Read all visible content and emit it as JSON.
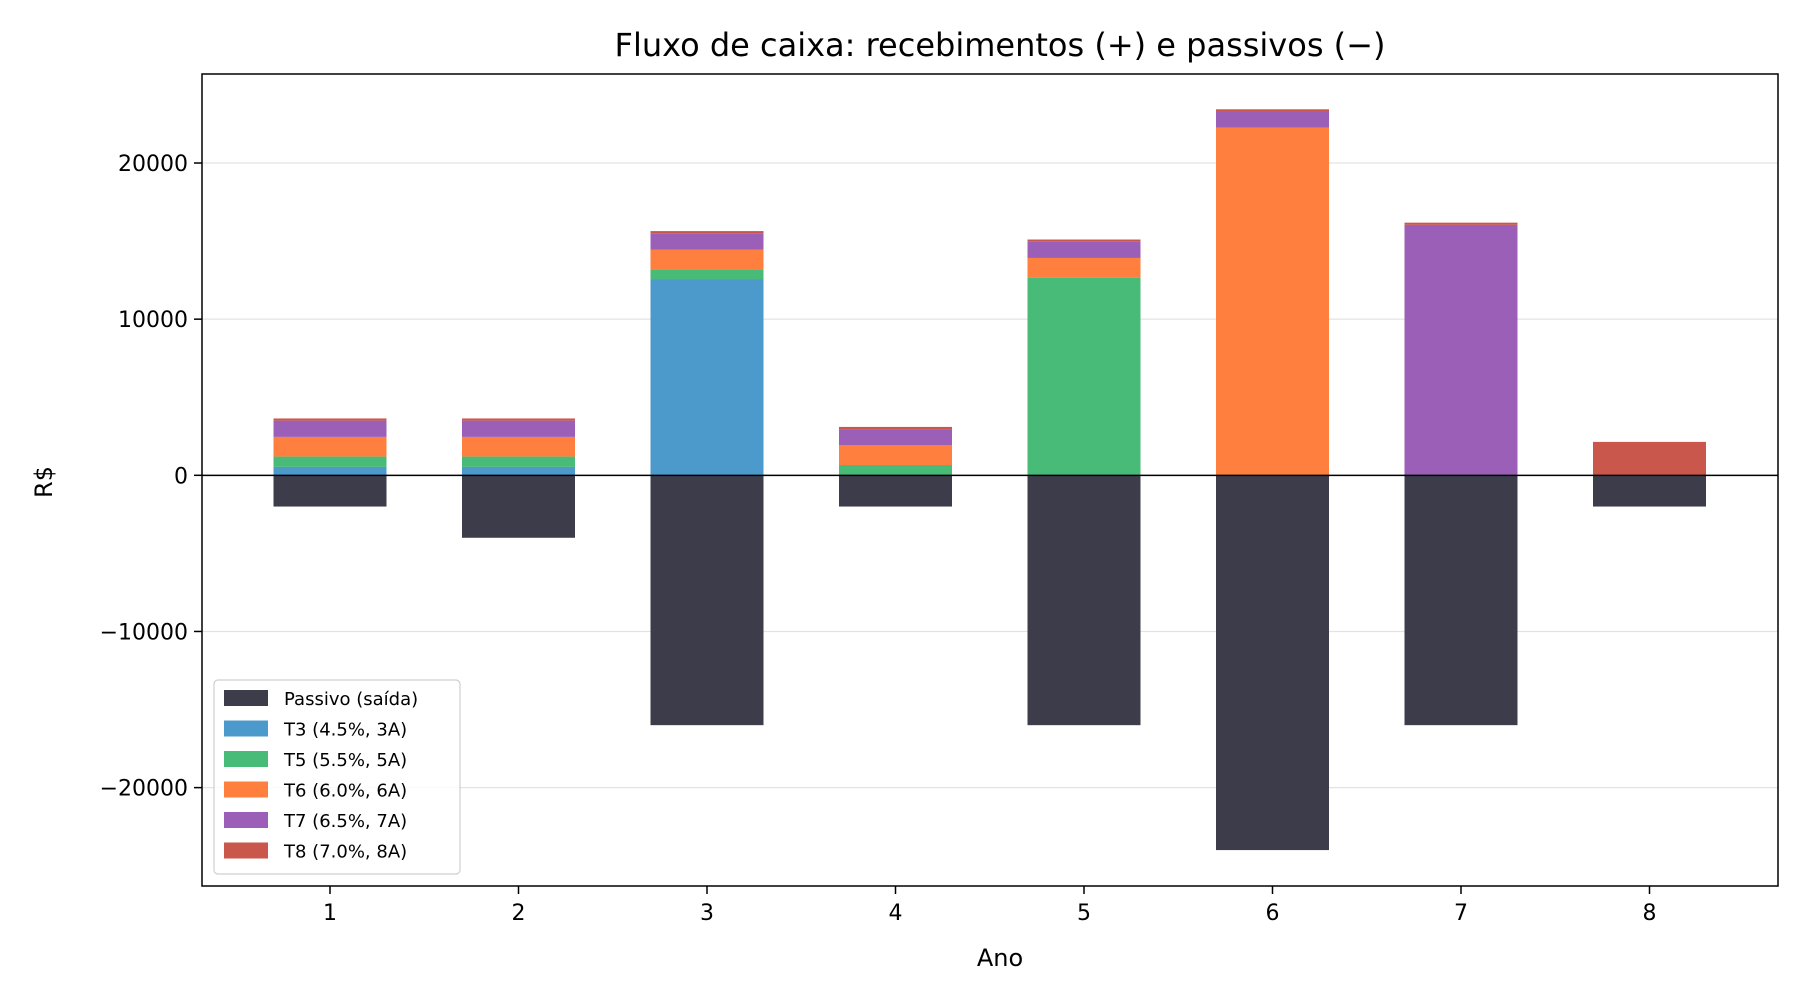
{
  "chart_data": {
    "type": "bar",
    "stacked": true,
    "title": "Fluxo de caixa: recebimentos (+) e passivos (−)",
    "xlabel": "Ano",
    "ylabel": "R$",
    "categories": [
      "1",
      "2",
      "3",
      "4",
      "5",
      "6",
      "7",
      "8"
    ],
    "ylim": [
      -26300,
      25700
    ],
    "yticks": [
      -20000,
      -10000,
      0,
      10000,
      20000
    ],
    "ytick_labels": [
      "−20000",
      "−10000",
      "0",
      "10000",
      "20000"
    ],
    "grid": "horizontal",
    "legend_position": "lower-left",
    "series": [
      {
        "name": "Passivo (saída)",
        "color": "#3d3c4b",
        "values": [
          -2000,
          -4000,
          -16000,
          -2000,
          -16000,
          -24000,
          -16000,
          -2000
        ]
      },
      {
        "name": "T3 (4.5%, 3A)",
        "color": "#4c99cc",
        "values": [
          540,
          540,
          12540,
          0,
          0,
          0,
          0,
          0
        ]
      },
      {
        "name": "T5 (5.5%, 5A)",
        "color": "#48bb78",
        "values": [
          660,
          660,
          660,
          660,
          12660,
          0,
          0,
          0
        ]
      },
      {
        "name": "T6 (6.0%, 6A)",
        "color": "#ff7f3f",
        "values": [
          1260,
          1260,
          1260,
          1260,
          1260,
          22260,
          0,
          0
        ]
      },
      {
        "name": "T7 (6.5%, 7A)",
        "color": "#9b5fb8",
        "values": [
          1040,
          1040,
          1040,
          1040,
          1040,
          1040,
          16040,
          0
        ]
      },
      {
        "name": "T8 (7.0%, 8A)",
        "color": "#c9574b",
        "values": [
          140,
          140,
          140,
          140,
          140,
          140,
          140,
          2140
        ]
      }
    ]
  }
}
